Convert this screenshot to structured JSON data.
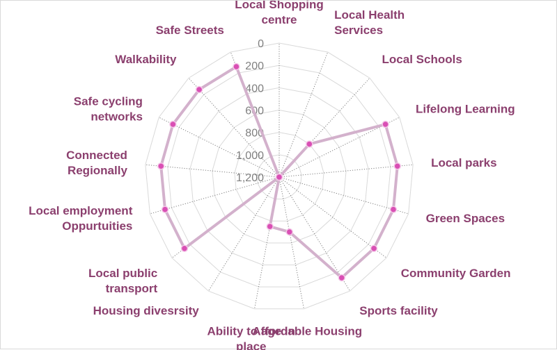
{
  "chart_data": {
    "type": "radar",
    "title": "",
    "direction": "counterclockwise",
    "axis_reversed": true,
    "rlim": [
      0,
      1200
    ],
    "ticks": [
      "0",
      "200",
      "400",
      "600",
      "800",
      "1,000",
      "1,200"
    ],
    "tick_values": [
      0,
      200,
      400,
      600,
      800,
      1000,
      1200
    ],
    "grid": true,
    "legend": "none",
    "categories": [
      "Local Shopping centre",
      "Safe Streets",
      "Walkability",
      "Safe cycling networks",
      "Connected Regionally",
      "Local employment Oppurtuities",
      "Local public transport",
      "Housing divesrsity",
      "Ability to age in place",
      "Affordable Housing",
      "Sports  facility",
      "Community Garden",
      "Green Spaces",
      "Local parks",
      "Lifelong Learning",
      "Local Schools",
      "Local Health Services"
    ],
    "label_lines": [
      [
        "Local Shopping",
        "centre"
      ],
      [
        "Safe Streets"
      ],
      [
        "Walkability"
      ],
      [
        "Safe cycling",
        "networks"
      ],
      [
        "Connected",
        "Regionally"
      ],
      [
        "Local employment",
        "Oppurtuities"
      ],
      [
        "Local public",
        "transport"
      ],
      [
        "Housing divesrsity"
      ],
      [
        "Ability to age in",
        "place"
      ],
      [
        "Affordable Housing"
      ],
      [
        "Sports  facility"
      ],
      [
        "Community Garden"
      ],
      [
        "Green Spaces"
      ],
      [
        "Local parks"
      ],
      [
        "Lifelong Learning"
      ],
      [
        "Local Schools"
      ],
      [
        "Local Health",
        "Services"
      ]
    ],
    "series": [
      {
        "values": [
          1200,
          140,
          140,
          140,
          140,
          140,
          140,
          1200,
          750,
          700,
          140,
          140,
          140,
          140,
          140,
          800,
          1200
        ]
      }
    ],
    "colors": {
      "line": "#d3b1cc",
      "marker": "#d94fb4",
      "label": "#8b3f6e",
      "tick": "#7f7f7f",
      "grid": "#d9d9d9",
      "spoke": "#7f7f7f"
    }
  }
}
